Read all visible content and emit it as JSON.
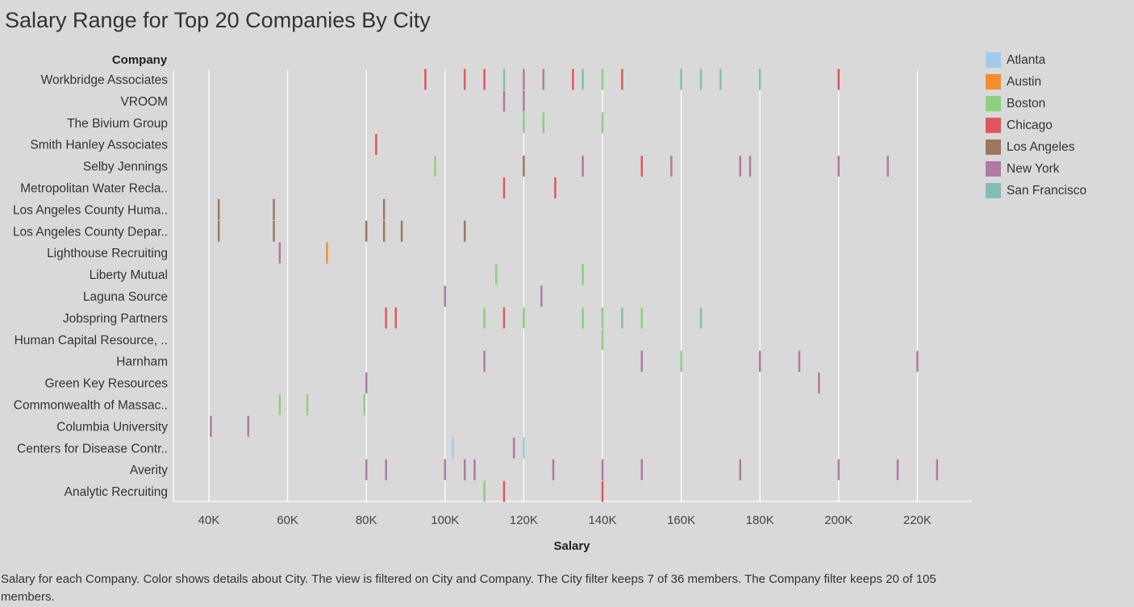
{
  "title": "Salary Range for Top 20 Companies By City",
  "caption": "Salary for each Company.  Color shows details about City. The view is filtered on City and Company. The City filter keeps 7 of 36 members. The Company filter keeps 20 of 105 members.",
  "chart_data": {
    "type": "scatter",
    "mark": "tick",
    "title": "Salary Range for Top 20 Companies By City",
    "xlabel": "Salary",
    "ylabel": "Company",
    "xlim": [
      30000,
      232000
    ],
    "xticks": [
      40000,
      60000,
      80000,
      100000,
      120000,
      140000,
      160000,
      180000,
      200000,
      220000
    ],
    "xtick_labels": [
      "40K",
      "60K",
      "80K",
      "100K",
      "120K",
      "140K",
      "160K",
      "180K",
      "200K",
      "220K"
    ],
    "grid": "vertical",
    "legend_position": "top-right",
    "categories": [
      "Workbridge Associates",
      "VROOM",
      "The Bivium Group",
      "Smith Hanley Associates",
      "Selby Jennings",
      "Metropolitan Water Recla..",
      "Los Angeles County Huma..",
      "Los Angeles County Depar..",
      "Lighthouse Recruiting",
      "Liberty Mutual",
      "Laguna Source",
      "Jobspring Partners",
      "Human Capital Resource, ..",
      "Harnham",
      "Green Key Resources",
      "Commonwealth of Massac..",
      "Columbia University",
      "Centers for Disease Contr..",
      "Averity",
      "Analytic Recruiting"
    ],
    "series": [
      {
        "name": "Atlanta",
        "color": "#a0cbe8",
        "points": [
          {
            "company": "Centers for Disease Contr..",
            "salary": 102000
          },
          {
            "company": "Centers for Disease Contr..",
            "salary": 120000
          }
        ]
      },
      {
        "name": "Austin",
        "color": "#f28e2b",
        "points": [
          {
            "company": "Lighthouse Recruiting",
            "salary": 70000
          }
        ]
      },
      {
        "name": "Boston",
        "color": "#8cd17d",
        "points": [
          {
            "company": "Workbridge Associates",
            "salary": 140000
          },
          {
            "company": "The Bivium Group",
            "salary": 120000
          },
          {
            "company": "The Bivium Group",
            "salary": 125000
          },
          {
            "company": "The Bivium Group",
            "salary": 140000
          },
          {
            "company": "Selby Jennings",
            "salary": 97500
          },
          {
            "company": "Liberty Mutual",
            "salary": 113000
          },
          {
            "company": "Liberty Mutual",
            "salary": 135000
          },
          {
            "company": "Jobspring Partners",
            "salary": 110000
          },
          {
            "company": "Jobspring Partners",
            "salary": 120000
          },
          {
            "company": "Jobspring Partners",
            "salary": 135000
          },
          {
            "company": "Jobspring Partners",
            "salary": 140000
          },
          {
            "company": "Jobspring Partners",
            "salary": 150000
          },
          {
            "company": "Human Capital Resource, ..",
            "salary": 140000
          },
          {
            "company": "Harnham",
            "salary": 160000
          },
          {
            "company": "Commonwealth of Massac..",
            "salary": 58000
          },
          {
            "company": "Commonwealth of Massac..",
            "salary": 65000
          },
          {
            "company": "Commonwealth of Massac..",
            "salary": 79500
          },
          {
            "company": "Analytic Recruiting",
            "salary": 110000
          }
        ]
      },
      {
        "name": "Chicago",
        "color": "#e15759",
        "points": [
          {
            "company": "Workbridge Associates",
            "salary": 95000
          },
          {
            "company": "Workbridge Associates",
            "salary": 105000
          },
          {
            "company": "Workbridge Associates",
            "salary": 110000
          },
          {
            "company": "Workbridge Associates",
            "salary": 132500
          },
          {
            "company": "Workbridge Associates",
            "salary": 145000
          },
          {
            "company": "Workbridge Associates",
            "salary": 200000
          },
          {
            "company": "Smith Hanley Associates",
            "salary": 82500
          },
          {
            "company": "Selby Jennings",
            "salary": 150000
          },
          {
            "company": "Metropolitan Water Recla..",
            "salary": 115000
          },
          {
            "company": "Metropolitan Water Recla..",
            "salary": 128000
          },
          {
            "company": "Jobspring Partners",
            "salary": 85000
          },
          {
            "company": "Jobspring Partners",
            "salary": 87500
          },
          {
            "company": "Jobspring Partners",
            "salary": 115000
          },
          {
            "company": "Analytic Recruiting",
            "salary": 115000
          },
          {
            "company": "Analytic Recruiting",
            "salary": 140000
          }
        ]
      },
      {
        "name": "Los Angeles",
        "color": "#9d7660",
        "points": [
          {
            "company": "Selby Jennings",
            "salary": 120000
          },
          {
            "company": "Los Angeles County Huma..",
            "salary": 42500
          },
          {
            "company": "Los Angeles County Huma..",
            "salary": 56500
          },
          {
            "company": "Los Angeles County Huma..",
            "salary": 84500
          },
          {
            "company": "Los Angeles County Depar..",
            "salary": 42500
          },
          {
            "company": "Los Angeles County Depar..",
            "salary": 56500
          },
          {
            "company": "Los Angeles County Depar..",
            "salary": 80000
          },
          {
            "company": "Los Angeles County Depar..",
            "salary": 84500
          },
          {
            "company": "Los Angeles County Depar..",
            "salary": 89000
          },
          {
            "company": "Los Angeles County Depar..",
            "salary": 105000
          }
        ]
      },
      {
        "name": "New York",
        "color": "#b07aa1",
        "points": [
          {
            "company": "Workbridge Associates",
            "salary": 120000
          },
          {
            "company": "Workbridge Associates",
            "salary": 125000
          },
          {
            "company": "VROOM",
            "salary": 115000
          },
          {
            "company": "VROOM",
            "salary": 120000
          },
          {
            "company": "Selby Jennings",
            "salary": 135000
          },
          {
            "company": "Selby Jennings",
            "salary": 157500
          },
          {
            "company": "Selby Jennings",
            "salary": 175000
          },
          {
            "company": "Selby Jennings",
            "salary": 177500
          },
          {
            "company": "Selby Jennings",
            "salary": 200000
          },
          {
            "company": "Selby Jennings",
            "salary": 212500
          },
          {
            "company": "Lighthouse Recruiting",
            "salary": 58000
          },
          {
            "company": "Laguna Source",
            "salary": 100000
          },
          {
            "company": "Laguna Source",
            "salary": 124500
          },
          {
            "company": "Harnham",
            "salary": 110000
          },
          {
            "company": "Harnham",
            "salary": 150000
          },
          {
            "company": "Harnham",
            "salary": 180000
          },
          {
            "company": "Harnham",
            "salary": 190000
          },
          {
            "company": "Harnham",
            "salary": 220000
          },
          {
            "company": "Green Key Resources",
            "salary": 80000
          },
          {
            "company": "Green Key Resources",
            "salary": 195000
          },
          {
            "company": "Columbia University",
            "salary": 40500
          },
          {
            "company": "Columbia University",
            "salary": 50000
          },
          {
            "company": "Centers for Disease Contr..",
            "salary": 117500
          },
          {
            "company": "Averity",
            "salary": 80000
          },
          {
            "company": "Averity",
            "salary": 85000
          },
          {
            "company": "Averity",
            "salary": 100000
          },
          {
            "company": "Averity",
            "salary": 105000
          },
          {
            "company": "Averity",
            "salary": 107500
          },
          {
            "company": "Averity",
            "salary": 127500
          },
          {
            "company": "Averity",
            "salary": 140000
          },
          {
            "company": "Averity",
            "salary": 150000
          },
          {
            "company": "Averity",
            "salary": 175000
          },
          {
            "company": "Averity",
            "salary": 200000
          },
          {
            "company": "Averity",
            "salary": 215000
          },
          {
            "company": "Averity",
            "salary": 225000
          }
        ]
      },
      {
        "name": "San Francisco",
        "color": "#86bcb6",
        "points": [
          {
            "company": "Workbridge Associates",
            "salary": 115000
          },
          {
            "company": "Workbridge Associates",
            "salary": 135000
          },
          {
            "company": "Workbridge Associates",
            "salary": 160000
          },
          {
            "company": "Workbridge Associates",
            "salary": 165000
          },
          {
            "company": "Workbridge Associates",
            "salary": 170000
          },
          {
            "company": "Workbridge Associates",
            "salary": 180000
          },
          {
            "company": "Jobspring Partners",
            "salary": 145000
          },
          {
            "company": "Jobspring Partners",
            "salary": 165000
          }
        ]
      }
    ]
  }
}
